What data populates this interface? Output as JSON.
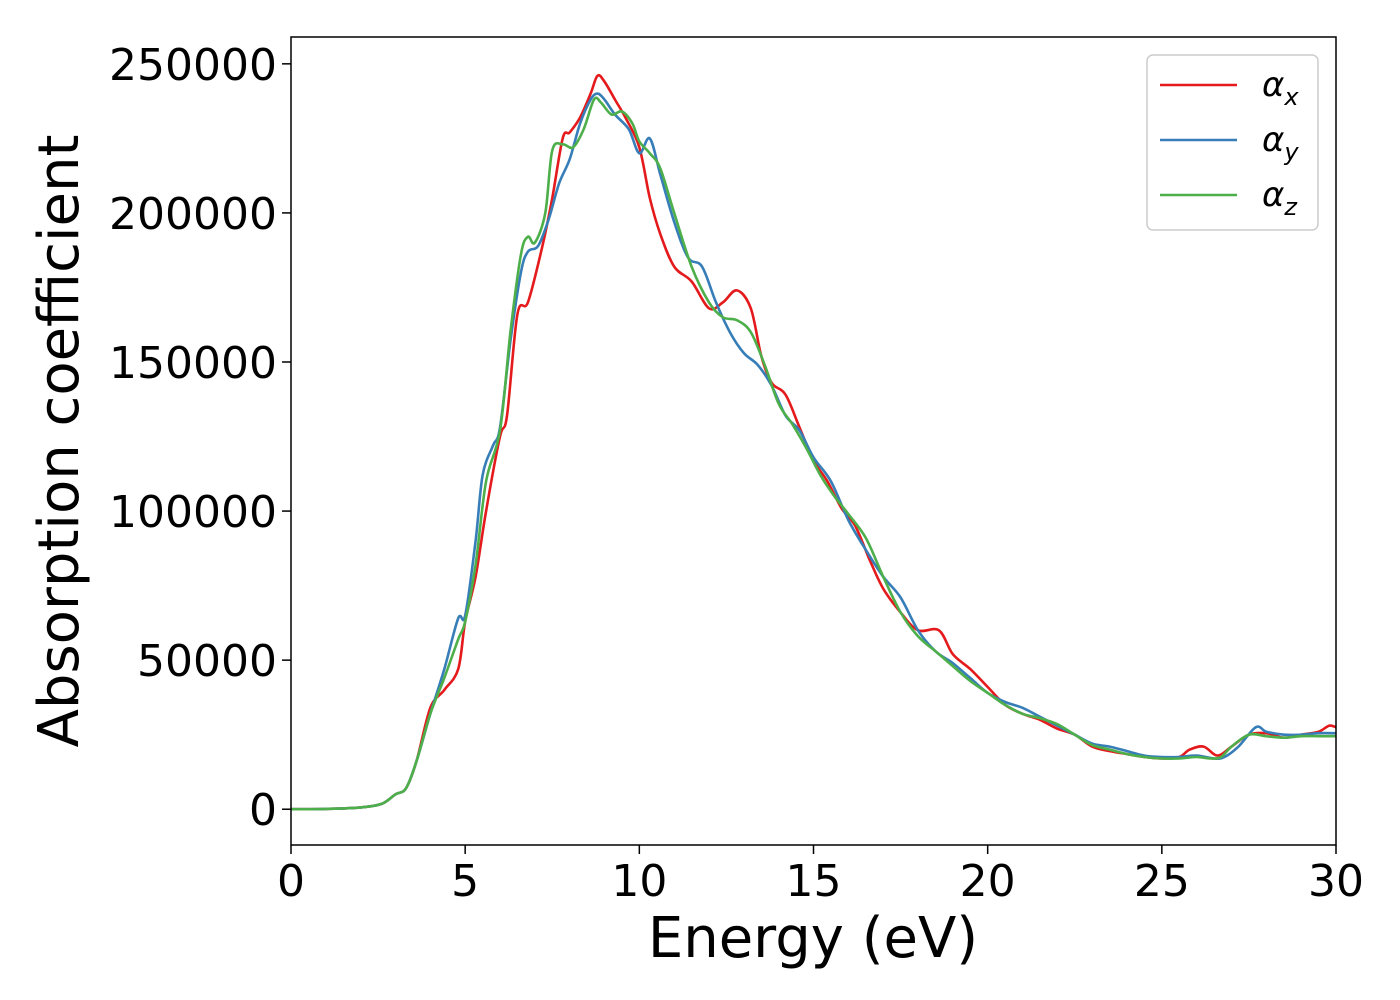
{
  "chart_data": {
    "type": "line",
    "title": "",
    "xlabel": "Energy (eV)",
    "ylabel": "Absorption coefficient",
    "xlim": [
      0,
      30
    ],
    "ylim": [
      -12000,
      259000
    ],
    "xticks": [
      0,
      5,
      10,
      15,
      20,
      25,
      30
    ],
    "yticks": [
      0,
      50000,
      100000,
      150000,
      200000,
      250000
    ],
    "grid": false,
    "legend_position": "top-right",
    "series": [
      {
        "name": "α_x",
        "legend_base": "α",
        "legend_sub": "x",
        "color": "#e41a1c",
        "points": [
          [
            0,
            0
          ],
          [
            1,
            100
          ],
          [
            2,
            600
          ],
          [
            2.6,
            1800
          ],
          [
            3.0,
            5000
          ],
          [
            3.3,
            7000
          ],
          [
            3.6,
            16000
          ],
          [
            4.0,
            34000
          ],
          [
            4.4,
            40000
          ],
          [
            4.8,
            47000
          ],
          [
            5.0,
            63000
          ],
          [
            5.3,
            78000
          ],
          [
            5.6,
            100000
          ],
          [
            6.0,
            125000
          ],
          [
            6.2,
            132000
          ],
          [
            6.5,
            166000
          ],
          [
            6.8,
            170000
          ],
          [
            7.2,
            188000
          ],
          [
            7.5,
            205000
          ],
          [
            7.8,
            225000
          ],
          [
            8.0,
            227000
          ],
          [
            8.3,
            232000
          ],
          [
            8.6,
            240000
          ],
          [
            8.8,
            246000
          ],
          [
            9.0,
            244000
          ],
          [
            9.3,
            238000
          ],
          [
            9.6,
            232000
          ],
          [
            10.0,
            222000
          ],
          [
            10.3,
            205000
          ],
          [
            10.6,
            193000
          ],
          [
            11.0,
            182000
          ],
          [
            11.5,
            177000
          ],
          [
            12.0,
            168000
          ],
          [
            12.4,
            170000
          ],
          [
            12.8,
            174000
          ],
          [
            13.2,
            168000
          ],
          [
            13.5,
            152000
          ],
          [
            13.8,
            143000
          ],
          [
            14.2,
            139000
          ],
          [
            14.6,
            128000
          ],
          [
            15.0,
            117000
          ],
          [
            15.4,
            110000
          ],
          [
            15.8,
            101000
          ],
          [
            16.2,
            95000
          ],
          [
            16.6,
            84000
          ],
          [
            17.0,
            74000
          ],
          [
            17.5,
            66000
          ],
          [
            18.0,
            60000
          ],
          [
            18.6,
            60000
          ],
          [
            19.0,
            52000
          ],
          [
            19.5,
            47000
          ],
          [
            20.0,
            41000
          ],
          [
            20.5,
            35000
          ],
          [
            21.0,
            32000
          ],
          [
            21.5,
            30000
          ],
          [
            22.0,
            27000
          ],
          [
            22.5,
            25000
          ],
          [
            23.0,
            21000
          ],
          [
            23.5,
            19500
          ],
          [
            24.0,
            18500
          ],
          [
            24.5,
            17500
          ],
          [
            25.0,
            17000
          ],
          [
            25.5,
            17500
          ],
          [
            25.8,
            20000
          ],
          [
            26.2,
            21000
          ],
          [
            26.6,
            18000
          ],
          [
            27.0,
            21000
          ],
          [
            27.5,
            25000
          ],
          [
            28.0,
            25500
          ],
          [
            28.5,
            24000
          ],
          [
            29.0,
            25000
          ],
          [
            29.5,
            26000
          ],
          [
            29.8,
            28000
          ],
          [
            30.0,
            27500
          ]
        ]
      },
      {
        "name": "α_y",
        "legend_base": "α",
        "legend_sub": "y",
        "color": "#377eb8",
        "points": [
          [
            0,
            0
          ],
          [
            1,
            100
          ],
          [
            2,
            600
          ],
          [
            2.6,
            1800
          ],
          [
            3.0,
            5000
          ],
          [
            3.3,
            7000
          ],
          [
            3.6,
            16000
          ],
          [
            4.0,
            32000
          ],
          [
            4.4,
            47000
          ],
          [
            4.8,
            64000
          ],
          [
            5.0,
            65000
          ],
          [
            5.3,
            90000
          ],
          [
            5.5,
            112000
          ],
          [
            5.8,
            122000
          ],
          [
            6.0,
            128000
          ],
          [
            6.3,
            157000
          ],
          [
            6.6,
            180000
          ],
          [
            6.8,
            187000
          ],
          [
            7.1,
            189000
          ],
          [
            7.4,
            198000
          ],
          [
            7.7,
            210000
          ],
          [
            8.0,
            218000
          ],
          [
            8.3,
            230000
          ],
          [
            8.6,
            238000
          ],
          [
            8.8,
            240000
          ],
          [
            9.0,
            238000
          ],
          [
            9.3,
            233000
          ],
          [
            9.7,
            228000
          ],
          [
            10.0,
            220000
          ],
          [
            10.3,
            225000
          ],
          [
            10.6,
            213000
          ],
          [
            11.0,
            197000
          ],
          [
            11.4,
            185000
          ],
          [
            11.8,
            182000
          ],
          [
            12.2,
            170000
          ],
          [
            12.6,
            160000
          ],
          [
            13.0,
            153000
          ],
          [
            13.4,
            149000
          ],
          [
            13.8,
            142000
          ],
          [
            14.2,
            132000
          ],
          [
            14.6,
            127000
          ],
          [
            15.0,
            118000
          ],
          [
            15.5,
            110000
          ],
          [
            16.0,
            97000
          ],
          [
            16.5,
            87000
          ],
          [
            17.0,
            78000
          ],
          [
            17.5,
            71000
          ],
          [
            18.0,
            60000
          ],
          [
            18.5,
            53000
          ],
          [
            19.0,
            49000
          ],
          [
            19.5,
            44000
          ],
          [
            20.0,
            39000
          ],
          [
            20.5,
            36000
          ],
          [
            21.0,
            34000
          ],
          [
            21.5,
            31000
          ],
          [
            22.0,
            28000
          ],
          [
            22.5,
            25000
          ],
          [
            23.0,
            22000
          ],
          [
            23.5,
            21000
          ],
          [
            24.0,
            19500
          ],
          [
            24.5,
            18000
          ],
          [
            25.0,
            17500
          ],
          [
            25.5,
            17500
          ],
          [
            26.0,
            18000
          ],
          [
            26.5,
            17000
          ],
          [
            26.8,
            17500
          ],
          [
            27.2,
            21000
          ],
          [
            27.7,
            27500
          ],
          [
            28.0,
            26000
          ],
          [
            28.5,
            25000
          ],
          [
            29.0,
            25000
          ],
          [
            29.5,
            25500
          ],
          [
            30.0,
            25500
          ]
        ]
      },
      {
        "name": "α_z",
        "legend_base": "α",
        "legend_sub": "z",
        "color": "#4daf4a",
        "points": [
          [
            0,
            0
          ],
          [
            1,
            100
          ],
          [
            2,
            600
          ],
          [
            2.6,
            1800
          ],
          [
            3.0,
            5000
          ],
          [
            3.3,
            7000
          ],
          [
            3.6,
            16000
          ],
          [
            4.0,
            32000
          ],
          [
            4.4,
            44000
          ],
          [
            4.8,
            57000
          ],
          [
            5.0,
            63000
          ],
          [
            5.3,
            82000
          ],
          [
            5.6,
            110000
          ],
          [
            6.0,
            127000
          ],
          [
            6.3,
            160000
          ],
          [
            6.6,
            186000
          ],
          [
            6.8,
            192000
          ],
          [
            7.0,
            190000
          ],
          [
            7.3,
            200000
          ],
          [
            7.5,
            221000
          ],
          [
            7.8,
            223000
          ],
          [
            8.1,
            222000
          ],
          [
            8.4,
            228000
          ],
          [
            8.7,
            238000
          ],
          [
            8.9,
            237000
          ],
          [
            9.2,
            233000
          ],
          [
            9.5,
            234000
          ],
          [
            9.8,
            230000
          ],
          [
            10.0,
            224000
          ],
          [
            10.3,
            220000
          ],
          [
            10.6,
            215000
          ],
          [
            11.0,
            200000
          ],
          [
            11.5,
            182000
          ],
          [
            12.0,
            170000
          ],
          [
            12.4,
            165000
          ],
          [
            12.8,
            164000
          ],
          [
            13.2,
            160000
          ],
          [
            13.6,
            149000
          ],
          [
            14.0,
            136000
          ],
          [
            14.4,
            129000
          ],
          [
            14.8,
            121000
          ],
          [
            15.2,
            112000
          ],
          [
            15.6,
            105000
          ],
          [
            16.0,
            99000
          ],
          [
            16.5,
            91000
          ],
          [
            17.0,
            78000
          ],
          [
            17.5,
            66000
          ],
          [
            18.0,
            58000
          ],
          [
            18.5,
            53000
          ],
          [
            19.0,
            48000
          ],
          [
            19.5,
            43000
          ],
          [
            20.0,
            39000
          ],
          [
            20.5,
            35000
          ],
          [
            21.0,
            32000
          ],
          [
            21.5,
            30500
          ],
          [
            22.0,
            28500
          ],
          [
            22.5,
            25000
          ],
          [
            23.0,
            21500
          ],
          [
            23.5,
            20000
          ],
          [
            24.0,
            18500
          ],
          [
            24.5,
            17500
          ],
          [
            25.0,
            17000
          ],
          [
            25.5,
            17000
          ],
          [
            26.0,
            17500
          ],
          [
            26.4,
            17000
          ],
          [
            26.7,
            17500
          ],
          [
            27.0,
            21000
          ],
          [
            27.5,
            25000
          ],
          [
            28.0,
            24500
          ],
          [
            28.5,
            24000
          ],
          [
            29.0,
            24500
          ],
          [
            29.5,
            24500
          ],
          [
            30.0,
            24500
          ]
        ]
      }
    ]
  }
}
